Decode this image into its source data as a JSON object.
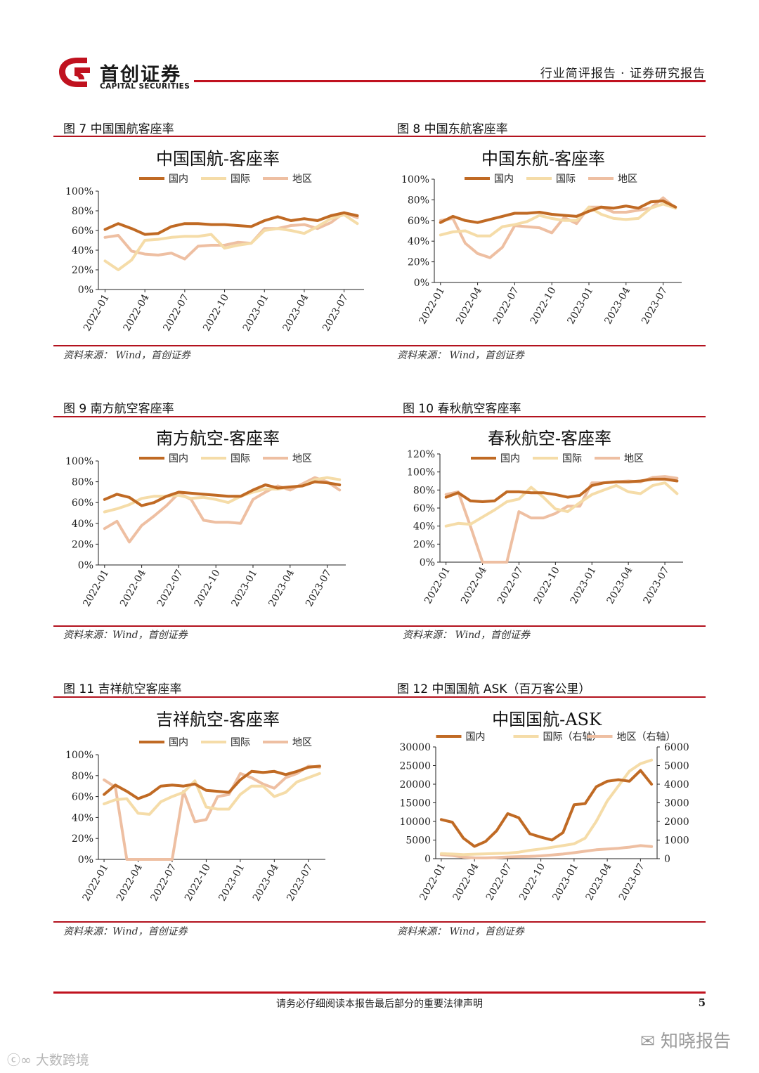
{
  "header": {
    "brand_cn": "首创证券",
    "brand_en": "CAPITAL SECURITIES",
    "report_type": "行业简评报告 · 证券研究报告"
  },
  "colors": {
    "domestic": "#c06a24",
    "international": "#f5dca8",
    "regional": "#eebfa2",
    "accent": "#c0121f"
  },
  "figures": [
    {
      "title": "图 7  中国国航客座率",
      "source": "资料来源：  Wind，首创证券"
    },
    {
      "title": "图 8  中国东航客座率",
      "source": "资料来源：  Wind，首创证券"
    },
    {
      "title": "图 9  南方航空客座率",
      "source": "资料来源：Wind，首创证券"
    },
    {
      "title": "图 10  春秋航空客座率",
      "source": "资料来源：  Wind，首创证券"
    },
    {
      "title": "图 11  吉祥航空客座率",
      "source": "资料来源：Wind，首创证券"
    },
    {
      "title": "图 12  中国国航 ASK（百万客公里）",
      "source": "资料来源：  Wind，首创证券"
    }
  ],
  "chart_data": [
    {
      "type": "line",
      "title": "中国国航-客座率",
      "legend": [
        "国内",
        "国际",
        "地区"
      ],
      "x_ticks": [
        "2022-01",
        "2022-04",
        "2022-07",
        "2022-10",
        "2023-01",
        "2023-04",
        "2023-07"
      ],
      "n_points": 20,
      "ylim": [
        0,
        100
      ],
      "y_ticks": [
        "0%",
        "20%",
        "40%",
        "60%",
        "80%",
        "100%"
      ],
      "y_tick_values": [
        0,
        20,
        40,
        60,
        80,
        100
      ],
      "series": [
        {
          "name": "国内",
          "values": [
            61,
            67,
            62,
            56,
            57,
            64,
            67,
            67,
            66,
            66,
            65,
            64,
            70,
            74,
            70,
            72,
            70,
            75,
            78,
            75
          ]
        },
        {
          "name": "国际",
          "values": [
            29,
            20,
            30,
            50,
            51,
            53,
            54,
            54,
            56,
            42,
            45,
            47,
            60,
            62,
            60,
            57,
            64,
            72,
            76,
            67
          ]
        },
        {
          "name": "地区",
          "values": [
            53,
            55,
            39,
            36,
            35,
            37,
            31,
            44,
            45,
            45,
            48,
            47,
            62,
            62,
            65,
            66,
            62,
            68,
            78,
            73
          ]
        }
      ]
    },
    {
      "type": "line",
      "title": "中国东航-客座率",
      "legend": [
        "国内",
        "国际",
        "地区"
      ],
      "x_ticks": [
        "2022-01",
        "2022-04",
        "2022-07",
        "2022-10",
        "2023-01",
        "2023-04",
        "2023-07"
      ],
      "n_points": 20,
      "ylim": [
        0,
        100
      ],
      "y_ticks": [
        "0%",
        "20%",
        "40%",
        "60%",
        "80%",
        "100%"
      ],
      "y_tick_values": [
        0,
        20,
        40,
        60,
        80,
        100
      ],
      "series": [
        {
          "name": "国内",
          "values": [
            58,
            64,
            60,
            58,
            61,
            64,
            67,
            67,
            68,
            66,
            65,
            64,
            69,
            73,
            72,
            74,
            72,
            78,
            79,
            73
          ]
        },
        {
          "name": "国际",
          "values": [
            46,
            49,
            50,
            45,
            45,
            54,
            56,
            59,
            65,
            62,
            60,
            60,
            73,
            66,
            62,
            61,
            62,
            72,
            76,
            72
          ]
        },
        {
          "name": "地区",
          "values": [
            60,
            62,
            38,
            28,
            24,
            34,
            55,
            54,
            53,
            48,
            63,
            57,
            73,
            73,
            68,
            68,
            70,
            72,
            82,
            72
          ]
        }
      ]
    },
    {
      "type": "line",
      "title": "南方航空-客座率",
      "legend": [
        "国内",
        "国际",
        "地区"
      ],
      "x_ticks": [
        "2022-01",
        "2022-04",
        "2022-07",
        "2022-10",
        "2023-01",
        "2023-04",
        "2023-07"
      ],
      "n_points": 20,
      "ylim": [
        0,
        100
      ],
      "y_ticks": [
        "0%",
        "20%",
        "40%",
        "60%",
        "80%",
        "100%"
      ],
      "y_tick_values": [
        0,
        20,
        40,
        60,
        80,
        100
      ],
      "series": [
        {
          "name": "国内",
          "values": [
            63,
            68,
            65,
            57,
            60,
            66,
            70,
            69,
            68,
            67,
            66,
            66,
            72,
            77,
            74,
            75,
            76,
            80,
            79,
            77
          ]
        },
        {
          "name": "国际",
          "values": [
            51,
            54,
            58,
            64,
            66,
            66,
            67,
            64,
            65,
            63,
            60,
            66,
            70,
            73,
            73,
            75,
            76,
            82,
            84,
            82
          ]
        },
        {
          "name": "地区",
          "values": [
            35,
            42,
            22,
            38,
            47,
            57,
            69,
            63,
            43,
            41,
            41,
            40,
            63,
            70,
            76,
            72,
            78,
            84,
            80,
            72
          ]
        }
      ]
    },
    {
      "type": "line",
      "title": "春秋航空-客座率",
      "legend": [
        "国内",
        "国际",
        "地区"
      ],
      "x_ticks": [
        "2022-01",
        "2022-04",
        "2022-07",
        "2022-10",
        "2023-01",
        "2023-04",
        "2023-07"
      ],
      "n_points": 20,
      "ylim": [
        0,
        120
      ],
      "y_ticks": [
        "0%",
        "20%",
        "40%",
        "60%",
        "80%",
        "100%",
        "120%"
      ],
      "y_tick_values": [
        0,
        20,
        40,
        60,
        80,
        100,
        120
      ],
      "series": [
        {
          "name": "国内",
          "values": [
            72,
            77,
            68,
            67,
            68,
            78,
            78,
            77,
            77,
            75,
            72,
            74,
            85,
            88,
            89,
            89,
            90,
            92,
            92,
            90
          ]
        },
        {
          "name": "国际",
          "values": [
            40,
            43,
            42,
            50,
            58,
            67,
            70,
            83,
            72,
            59,
            56,
            66,
            75,
            80,
            85,
            78,
            76,
            85,
            88,
            76
          ]
        },
        {
          "name": "地区",
          "values": [
            75,
            78,
            40,
            0,
            0,
            0,
            56,
            49,
            49,
            54,
            62,
            62,
            88,
            88,
            89,
            90,
            89,
            94,
            95,
            93
          ]
        }
      ]
    },
    {
      "type": "line",
      "title": "吉祥航空-客座率",
      "legend": [
        "国内",
        "国际",
        "地区"
      ],
      "x_ticks": [
        "2022-01",
        "2022-04",
        "2022-07",
        "2022-10",
        "2023-01",
        "2023-04",
        "2023-07"
      ],
      "n_points": 20,
      "ylim": [
        0,
        100
      ],
      "y_ticks": [
        "0%",
        "20%",
        "40%",
        "60%",
        "80%",
        "100%"
      ],
      "y_tick_values": [
        0,
        20,
        40,
        60,
        80,
        100
      ],
      "series": [
        {
          "name": "国内",
          "values": [
            62,
            71,
            65,
            58,
            62,
            70,
            71,
            70,
            72,
            66,
            65,
            64,
            76,
            84,
            83,
            84,
            81,
            84,
            88,
            89
          ]
        },
        {
          "name": "国际",
          "values": [
            53,
            57,
            58,
            44,
            43,
            55,
            60,
            64,
            75,
            50,
            48,
            48,
            62,
            70,
            70,
            60,
            64,
            74,
            78,
            82
          ]
        },
        {
          "name": "地区",
          "values": [
            76,
            69,
            0,
            0,
            0,
            0,
            0,
            65,
            36,
            38,
            60,
            62,
            82,
            78,
            72,
            68,
            78,
            82,
            89,
            88
          ]
        }
      ]
    },
    {
      "type": "line",
      "title": "中国国航-ASK",
      "legend": [
        "国内",
        "国际（右轴）",
        "地区（右轴）"
      ],
      "x_ticks": [
        "2022-01",
        "2022-04",
        "2022-07",
        "2022-10",
        "2023-01",
        "2023-04",
        "2023-07"
      ],
      "n_points": 20,
      "ylim": [
        0,
        30000
      ],
      "y_ticks": [
        "0",
        "5000",
        "10000",
        "15000",
        "20000",
        "25000",
        "30000"
      ],
      "y_tick_values": [
        0,
        5000,
        10000,
        15000,
        20000,
        25000,
        30000
      ],
      "y2lim": [
        0,
        6000
      ],
      "y2_ticks": [
        "0",
        "1000",
        "2000",
        "3000",
        "4000",
        "5000",
        "6000"
      ],
      "y2_tick_values": [
        0,
        1000,
        2000,
        3000,
        4000,
        5000,
        6000
      ],
      "series": [
        {
          "name": "国内",
          "axis": "left",
          "values": [
            10500,
            9800,
            5500,
            3300,
            4600,
            7500,
            12100,
            11000,
            6700,
            5800,
            5000,
            7000,
            14500,
            14800,
            19300,
            20800,
            21200,
            20800,
            23700,
            20000
          ]
        },
        {
          "name": "国际（右轴）",
          "axis": "right",
          "values": [
            270,
            250,
            220,
            240,
            260,
            280,
            300,
            350,
            450,
            520,
            610,
            700,
            800,
            1100,
            2000,
            3100,
            3900,
            4700,
            5100,
            5300
          ]
        },
        {
          "name": "地区（右轴）",
          "axis": "right",
          "values": [
            220,
            170,
            80,
            50,
            40,
            60,
            90,
            110,
            120,
            150,
            200,
            250,
            320,
            400,
            480,
            520,
            560,
            620,
            700,
            650
          ]
        }
      ]
    }
  ],
  "footer": {
    "disclaimer": "请务必仔细阅读本报告最后部分的重要法律声明",
    "page_number": "5"
  },
  "watermarks": {
    "right": "知晓报告",
    "left": "大数跨境"
  }
}
